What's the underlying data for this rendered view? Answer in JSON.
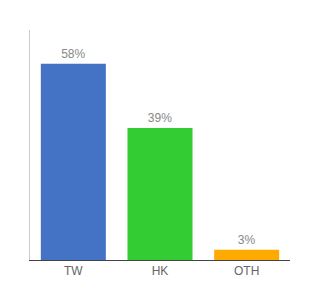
{
  "chart_data": {
    "type": "bar",
    "categories": [
      "TW",
      "HK",
      "OTH"
    ],
    "values": [
      58,
      39,
      3
    ],
    "value_labels": [
      "58%",
      "39%",
      "3%"
    ],
    "colors": [
      "#4472c4",
      "#33cc33",
      "#ffaa00"
    ],
    "ylim": [
      0,
      68
    ],
    "data_labels": true,
    "tick_labels": "x",
    "grid": false
  }
}
